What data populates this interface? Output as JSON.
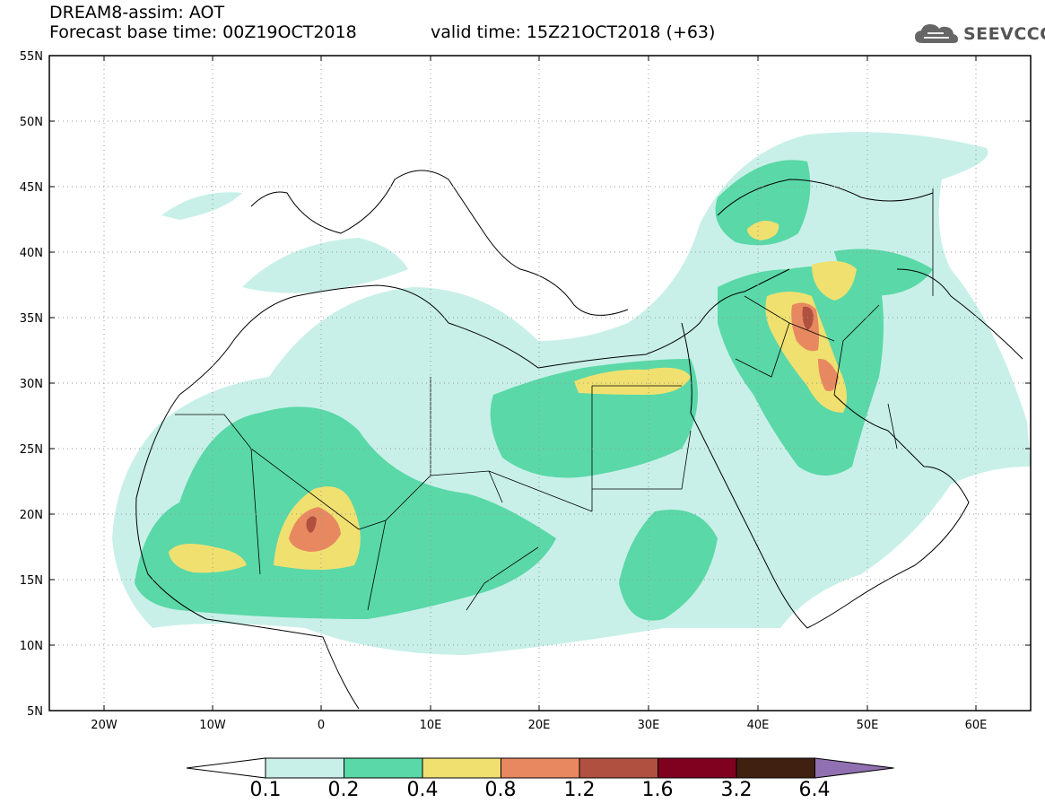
{
  "header": {
    "title_line1": "DREAM8-assim: AOT",
    "title_line2_left": "Forecast base time: 00Z19OCT2018",
    "title_line2_right": "valid time: 15Z21OCT2018 (+63)"
  },
  "logo": {
    "text": "SEEVCCC",
    "icon": "cloud-icon"
  },
  "map": {
    "latitude_labels": [
      "55N",
      "50N",
      "45N",
      "40N",
      "35N",
      "30N",
      "25N",
      "20N",
      "15N",
      "10N",
      "5N"
    ],
    "longitude_labels": [
      "20W",
      "10W",
      "0",
      "10E",
      "20E",
      "30E",
      "40E",
      "50E",
      "60E"
    ],
    "extent": {
      "lon_min": -25,
      "lon_max": 65,
      "lat_min": 5,
      "lat_max": 55
    },
    "grid": "dotted"
  },
  "colorbar": {
    "levels": [
      "0.1",
      "0.2",
      "0.4",
      "0.8",
      "1.2",
      "1.6",
      "3.2",
      "6.4"
    ],
    "colors": [
      "#c8f0e8",
      "#5ad8a8",
      "#f0e070",
      "#e88860",
      "#b05040",
      "#800020",
      "#402010",
      "#9070b0"
    ],
    "under_color": "#ffffff"
  }
}
